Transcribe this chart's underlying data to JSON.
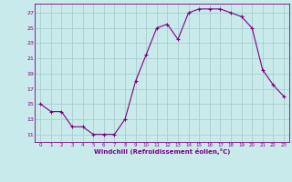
{
  "hours": [
    0,
    1,
    2,
    3,
    4,
    5,
    6,
    7,
    8,
    9,
    10,
    11,
    12,
    13,
    14,
    15,
    16,
    17,
    18,
    19,
    20,
    21,
    22,
    23
  ],
  "values": [
    15,
    14,
    14,
    12,
    12,
    11,
    11,
    11,
    13,
    18,
    21.5,
    25,
    25.5,
    23.5,
    27,
    27.5,
    27.5,
    27.5,
    27,
    26.5,
    25,
    19.5,
    17.5,
    16
  ],
  "line_color": "#800080",
  "marker": "+",
  "bg_color": "#c8eaea",
  "grid_color": "#aacece",
  "tick_label_color": "#800080",
  "xlabel": "Windchill (Refroidissement éolien,°C)",
  "ylabel_ticks": [
    11,
    13,
    15,
    17,
    19,
    21,
    23,
    25,
    27
  ],
  "ylim": [
    10.0,
    28.2
  ],
  "xlim": [
    -0.5,
    23.5
  ],
  "font_color": "#800080"
}
